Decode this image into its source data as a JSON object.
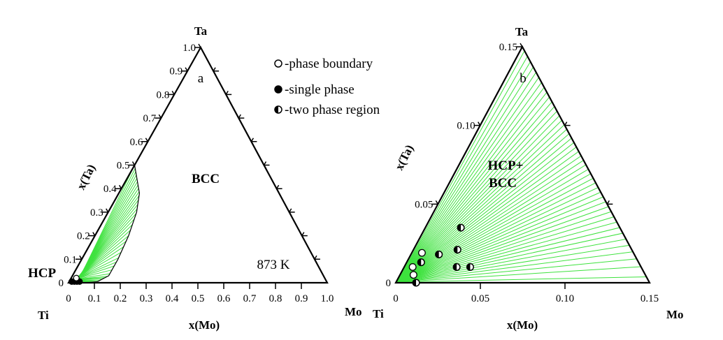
{
  "legend": {
    "phase_boundary": "-phase boundary",
    "single_phase": "-single phase",
    "two_phase_region": "-two phase region"
  },
  "chart_data": [
    {
      "type": "scatter",
      "panel_label": "a",
      "vertices": {
        "top": "Ta",
        "left": "Ti",
        "right": "Mo"
      },
      "xlabel": "x(Mo)",
      "ylabel": "x(Ta)",
      "temperature_label": "873 K",
      "region_labels": {
        "bcc": "BCC",
        "hcp": "HCP"
      },
      "bottom_ticks": [
        "0",
        "0.1",
        "0.2",
        "0.3",
        "0.4",
        "0.5",
        "0.6",
        "0.7",
        "0.8",
        "0.9",
        "1.0"
      ],
      "left_ticks": [
        "0",
        "0.1",
        "0.2",
        "0.3",
        "0.4",
        "0.5",
        "0.6",
        "0.7",
        "0.8",
        "0.9",
        "1.0"
      ],
      "range": [
        0,
        1.0
      ],
      "phase_boundary_curve": [
        [
          0,
          0.5
        ],
        [
          0.04,
          0.44
        ],
        [
          0.08,
          0.38
        ],
        [
          0.11,
          0.3
        ],
        [
          0.13,
          0.2
        ],
        [
          0.14,
          0.1
        ],
        [
          0.14,
          0.03
        ],
        [
          0.11,
          0.005
        ],
        [
          0.07,
          0.0
        ]
      ],
      "tie_line_source": "BCC",
      "points": [
        {
          "mo": 0.01,
          "ta": 0.005,
          "kind": "filled"
        },
        {
          "mo": 0.02,
          "ta": 0.005,
          "kind": "filled"
        },
        {
          "mo": 0.03,
          "ta": 0.005,
          "kind": "filled"
        },
        {
          "mo": 0.04,
          "ta": 0.005,
          "kind": "filled"
        },
        {
          "mo": 0.02,
          "ta": 0.02,
          "kind": "open"
        }
      ]
    },
    {
      "type": "scatter",
      "panel_label": "b",
      "vertices": {
        "top": "Ta",
        "left": "Ti",
        "right": "Mo"
      },
      "xlabel": "x(Mo)",
      "ylabel": "x(Ta)",
      "region_labels": {
        "two_phase": "HCP+\nBCC",
        "two_phase_line1": "HCP+",
        "two_phase_line2": "BCC"
      },
      "bottom_ticks": [
        "0",
        "0.05",
        "0.10",
        "0.15"
      ],
      "left_ticks": [
        "0",
        "0.05",
        "0.10",
        "0.15"
      ],
      "range": [
        0,
        0.15
      ],
      "tie_line_source": "BCC",
      "points": [
        {
          "mo": 0.005,
          "ta": 0.01,
          "kind": "open"
        },
        {
          "mo": 0.008,
          "ta": 0.005,
          "kind": "open"
        },
        {
          "mo": 0.006,
          "ta": 0.019,
          "kind": "open"
        },
        {
          "mo": 0.012,
          "ta": 0.0,
          "kind": "half"
        },
        {
          "mo": 0.0085,
          "ta": 0.013,
          "kind": "half"
        },
        {
          "mo": 0.021,
          "ta": 0.035,
          "kind": "half"
        },
        {
          "mo": 0.0165,
          "ta": 0.018,
          "kind": "half"
        },
        {
          "mo": 0.026,
          "ta": 0.021,
          "kind": "half"
        },
        {
          "mo": 0.031,
          "ta": 0.01,
          "kind": "half"
        },
        {
          "mo": 0.039,
          "ta": 0.01,
          "kind": "half"
        }
      ]
    }
  ]
}
